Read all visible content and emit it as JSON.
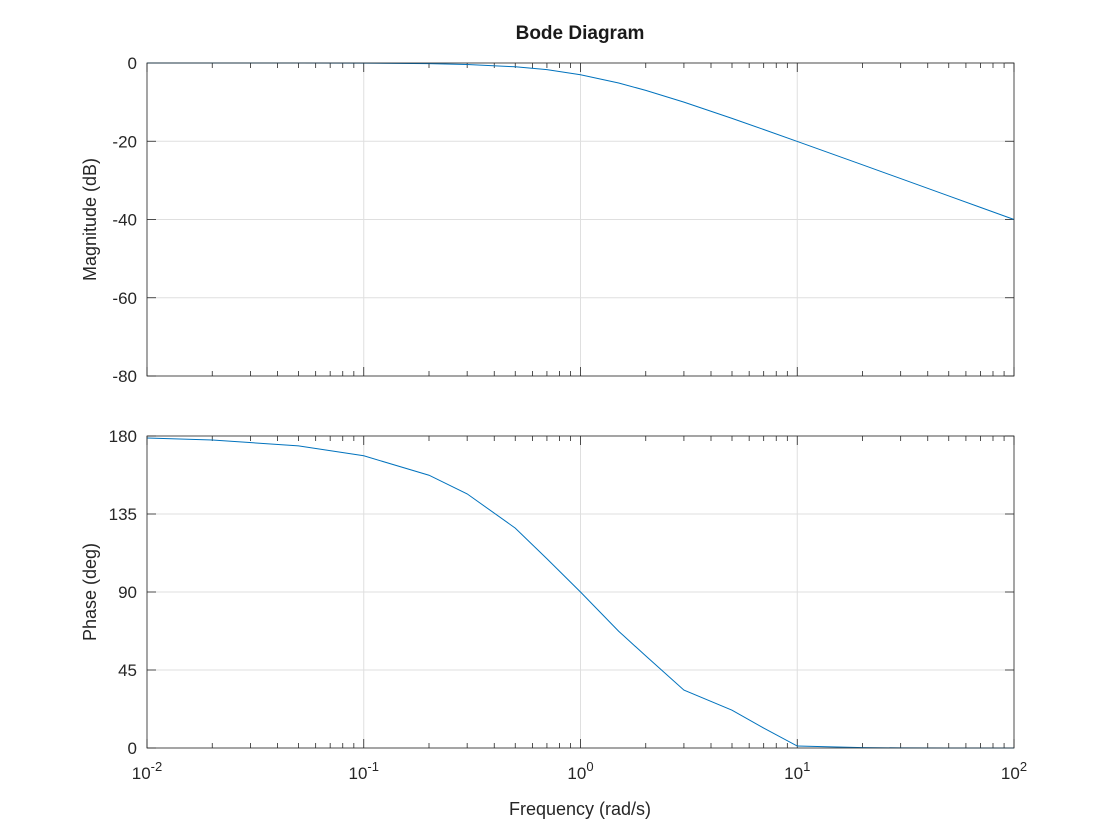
{
  "figure": {
    "title": "Bode Diagram",
    "xlabel": "Frequency (rad/s)"
  },
  "chart_data": [
    {
      "type": "line",
      "panel": "magnitude",
      "title": "Bode Diagram",
      "xlabel": "Frequency (rad/s)",
      "ylabel": "Magnitude (dB)",
      "xscale": "log",
      "xlim": [
        0.01,
        100
      ],
      "ylim": [
        -80,
        0
      ],
      "xticks": [
        0.01,
        0.1,
        1,
        10,
        100
      ],
      "xtick_labels": [
        {
          "base": "10",
          "exp": "-2"
        },
        {
          "base": "10",
          "exp": "-1"
        },
        {
          "base": "10",
          "exp": "0"
        },
        {
          "base": "10",
          "exp": "1"
        },
        {
          "base": "10",
          "exp": "2"
        }
      ],
      "yticks": [
        0,
        -20,
        -40,
        -60,
        -80
      ],
      "ytick_labels": [
        "0",
        "-20",
        "-40",
        "-60",
        "-80"
      ],
      "grid": true,
      "line_color": "#0072BD",
      "x": [
        0.01,
        0.02,
        0.05,
        0.1,
        0.2,
        0.3,
        0.5,
        0.7,
        1,
        1.5,
        2,
        3,
        5,
        7,
        10,
        20,
        30,
        50,
        70,
        100
      ],
      "y": [
        0,
        0,
        -0.01,
        -0.04,
        -0.17,
        -0.37,
        -0.97,
        -1.7,
        -3.01,
        -5.12,
        -6.99,
        -10.0,
        -14.15,
        -17.0,
        -20.04,
        -26.03,
        -29.54,
        -33.98,
        -36.9,
        -40.0
      ]
    },
    {
      "type": "line",
      "panel": "phase",
      "xlabel": "Frequency (rad/s)",
      "ylabel": "Phase (deg)",
      "xscale": "log",
      "xlim": [
        0.01,
        100
      ],
      "ylim": [
        0,
        180
      ],
      "xticks": [
        0.01,
        0.1,
        1,
        10,
        100
      ],
      "yticks": [
        180,
        135,
        90,
        45,
        0
      ],
      "ytick_labels": [
        "180",
        "135",
        "90",
        "45",
        "0"
      ],
      "grid": true,
      "line_color": "#0072BD",
      "x": [
        0.01,
        0.02,
        0.05,
        0.1,
        0.2,
        0.3,
        0.5,
        0.7,
        1,
        1.5,
        2,
        3,
        5,
        7,
        10,
        20,
        30,
        50,
        70,
        100
      ],
      "y": [
        178.85,
        177.71,
        174.28,
        168.58,
        157.38,
        146.6,
        126.87,
        109.2,
        90,
        67.38,
        53.13,
        33.4,
        21.8,
        11.5,
        1.15,
        0.23,
        0.06,
        0.01,
        0.01,
        0.01
      ]
    }
  ]
}
